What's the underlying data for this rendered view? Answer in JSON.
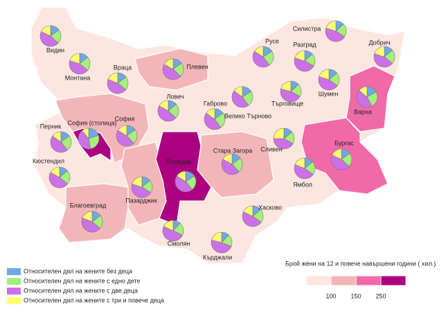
{
  "map": {
    "regions": [
      {
        "name": "Видин",
        "class": 0,
        "pie": [
          15,
          22,
          45,
          18
        ]
      },
      {
        "name": "Монтана",
        "class": 0,
        "pie": [
          14,
          22,
          44,
          20
        ]
      },
      {
        "name": "Враца",
        "class": 0,
        "pie": [
          15,
          21,
          45,
          19
        ]
      },
      {
        "name": "Плевен",
        "class": 1,
        "pie": [
          15,
          22,
          46,
          17
        ]
      },
      {
        "name": "Ловеч",
        "class": 0,
        "pie": [
          14,
          23,
          46,
          17
        ]
      },
      {
        "name": "Габрово",
        "class": 0,
        "pie": [
          15,
          25,
          45,
          15
        ]
      },
      {
        "name": "Велико Търново",
        "class": 0,
        "pie": [
          16,
          24,
          45,
          15
        ]
      },
      {
        "name": "Русе",
        "class": 0,
        "pie": [
          16,
          24,
          44,
          16
        ]
      },
      {
        "name": "Силистра",
        "class": 0,
        "pie": [
          13,
          21,
          46,
          20
        ]
      },
      {
        "name": "Разград",
        "class": 0,
        "pie": [
          13,
          20,
          47,
          20
        ]
      },
      {
        "name": "Добрич",
        "class": 0,
        "pie": [
          14,
          22,
          44,
          20
        ]
      },
      {
        "name": "Търговище",
        "class": 0,
        "pie": [
          13,
          20,
          46,
          21
        ]
      },
      {
        "name": "Шумен",
        "class": 0,
        "pie": [
          14,
          21,
          45,
          20
        ]
      },
      {
        "name": "Варна",
        "class": 2,
        "pie": [
          17,
          25,
          44,
          14
        ]
      },
      {
        "name": "Перник",
        "class": 0,
        "pie": [
          15,
          24,
          46,
          15
        ]
      },
      {
        "name": "София (столица)",
        "class": 3,
        "pie": [
          20,
          27,
          42,
          11
        ]
      },
      {
        "name": "София",
        "class": 1,
        "pie": [
          15,
          23,
          46,
          16
        ]
      },
      {
        "name": "Кюстендил",
        "class": 0,
        "pie": [
          14,
          22,
          47,
          17
        ]
      },
      {
        "name": "Благоевград",
        "class": 1,
        "pie": [
          15,
          21,
          45,
          19
        ]
      },
      {
        "name": "Пазарджик",
        "class": 1,
        "pie": [
          14,
          20,
          46,
          20
        ]
      },
      {
        "name": "Пловдив",
        "class": 3,
        "pie": [
          16,
          23,
          45,
          16
        ]
      },
      {
        "name": "Стара Загора",
        "class": 1,
        "pie": [
          15,
          23,
          45,
          17
        ]
      },
      {
        "name": "Сливен",
        "class": 0,
        "pie": [
          14,
          19,
          42,
          25
        ]
      },
      {
        "name": "Бургас",
        "class": 2,
        "pie": [
          15,
          22,
          45,
          18
        ]
      },
      {
        "name": "Ямбол",
        "class": 0,
        "pie": [
          14,
          21,
          46,
          19
        ]
      },
      {
        "name": "Хасково",
        "class": 0,
        "pie": [
          14,
          21,
          47,
          18
        ]
      },
      {
        "name": "Смолян",
        "class": 0,
        "pie": [
          12,
          20,
          50,
          18
        ]
      },
      {
        "name": "Кърджали",
        "class": 0,
        "pie": [
          12,
          19,
          48,
          21
        ]
      }
    ],
    "pie_legend": [
      {
        "label": "Относителен дял на жените без деца",
        "color": "#6fa8e6"
      },
      {
        "label": "Относителен дял на жените с едно дете",
        "color": "#a6ef7a"
      },
      {
        "label": "Относителен дял на жените с две деца",
        "color": "#cc70e8"
      },
      {
        "label": "Относителен дял на жените с три и повече деца",
        "color": "#ffff70"
      }
    ],
    "scale_title": "Брой жени на 12 и повече навършени години ( хил.)",
    "class_colors": [
      "#fde6e0",
      "#f3b6b8",
      "#f06aa8",
      "#ab0080"
    ],
    "breaks": [
      100,
      150,
      250
    ]
  }
}
